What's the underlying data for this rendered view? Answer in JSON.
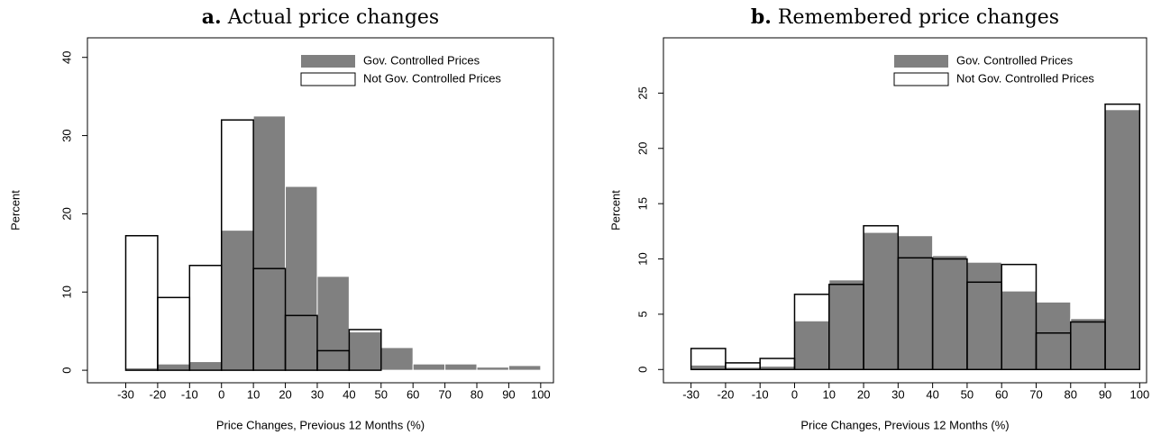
{
  "chart_data": [
    {
      "type": "histogram",
      "panel": "a.",
      "title": "Actual price changes",
      "xlabel": "Price Changes, Previous 12 Months (%)",
      "ylabel": "Percent",
      "bins": [
        -30,
        -20,
        -10,
        0,
        10,
        20,
        30,
        40,
        50,
        60,
        70,
        80,
        90,
        100
      ],
      "series": [
        {
          "name": "Gov. Controlled Prices",
          "color": "#808080",
          "style": "filled",
          "values": [
            0.3,
            0.8,
            1.1,
            17.9,
            32.5,
            23.5,
            12.0,
            4.9,
            2.9,
            0.8,
            0.8,
            0.4,
            0.6
          ]
        },
        {
          "name": "Not Gov. Controlled Prices",
          "color": "#000000",
          "style": "outline",
          "values": [
            17.2,
            9.3,
            13.4,
            32.0,
            13.0,
            7.0,
            2.5,
            5.2,
            null,
            null,
            null,
            null,
            null
          ]
        }
      ],
      "xlim": [
        -42,
        104
      ],
      "xticks": [
        -30,
        -20,
        -10,
        0,
        10,
        20,
        30,
        40,
        50,
        60,
        70,
        80,
        90,
        100
      ],
      "ylim": [
        -1.6,
        42.5
      ],
      "yticks": [
        0,
        10,
        20,
        30,
        40
      ],
      "legend": "upper right"
    },
    {
      "type": "histogram",
      "panel": "b.",
      "title": "Remembered price changes",
      "xlabel": "Price Changes, Previous 12 Months (%)",
      "ylabel": "Percent",
      "bins": [
        -30,
        -20,
        -10,
        0,
        10,
        20,
        30,
        40,
        50,
        60,
        70,
        80,
        90,
        100
      ],
      "series": [
        {
          "name": "Gov. Controlled Prices",
          "color": "#808080",
          "style": "filled",
          "values": [
            0.4,
            0.2,
            0.3,
            4.4,
            8.1,
            12.4,
            12.1,
            10.3,
            9.7,
            7.1,
            6.1,
            4.6,
            23.5
          ]
        },
        {
          "name": "Not Gov. Controlled Prices",
          "color": "#000000",
          "style": "outline",
          "values": [
            1.9,
            0.6,
            1.0,
            6.8,
            7.7,
            13.0,
            10.1,
            10.0,
            7.9,
            9.5,
            3.3,
            4.3,
            24.0
          ]
        }
      ],
      "xlim": [
        -38,
        102
      ],
      "xticks": [
        -30,
        -20,
        -10,
        0,
        10,
        20,
        30,
        40,
        50,
        60,
        70,
        80,
        90,
        100
      ],
      "ylim": [
        -1.2,
        30
      ],
      "yticks": [
        0,
        5,
        10,
        15,
        20,
        25
      ],
      "legend": "upper right"
    }
  ]
}
